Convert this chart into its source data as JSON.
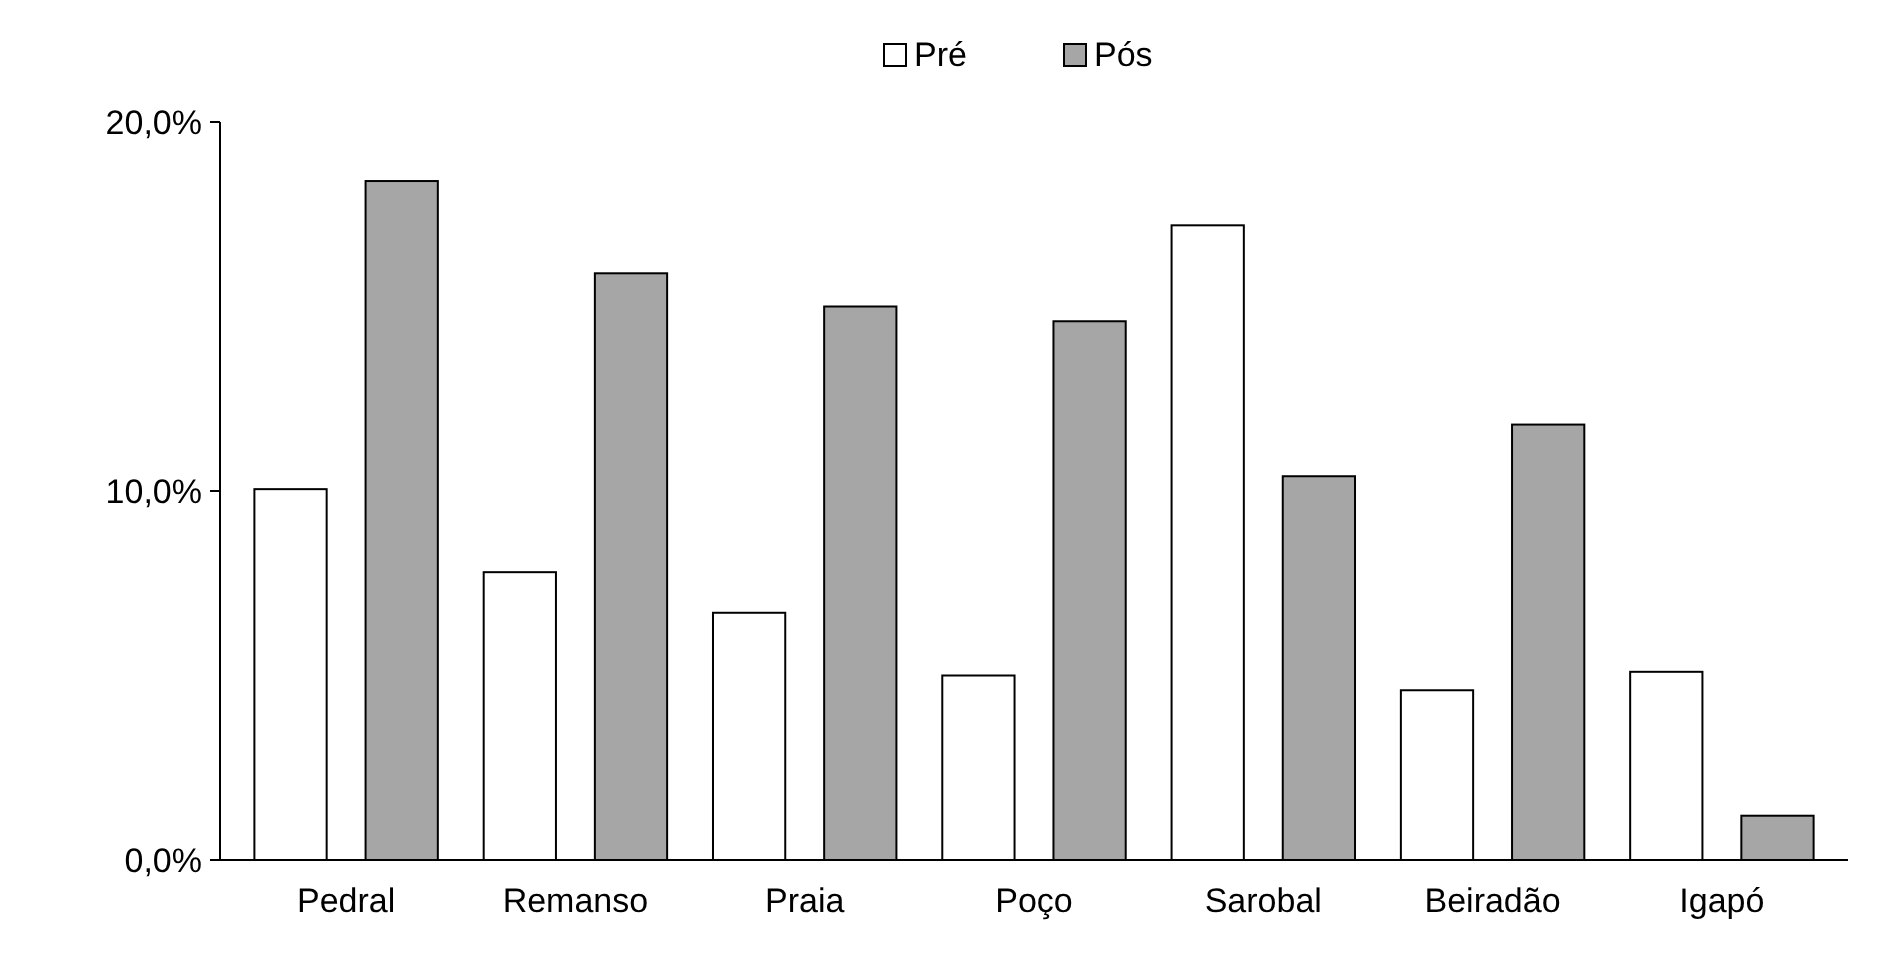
{
  "chart_data": {
    "type": "bar",
    "categories": [
      "Pedral",
      "Remanso",
      "Praia",
      "Poço",
      "Sarobal",
      "Beiradão",
      "Igapó"
    ],
    "series": [
      {
        "name": "Pré",
        "color": "#ffffff",
        "values": [
          10.05,
          7.8,
          6.7,
          5.0,
          17.2,
          4.6,
          5.1
        ]
      },
      {
        "name": "Pós",
        "color": "#a6a6a6",
        "values": [
          18.4,
          15.9,
          15.0,
          14.6,
          10.4,
          11.8,
          1.2
        ]
      }
    ],
    "ylim": [
      0,
      20
    ],
    "yticks": [
      {
        "value": 0,
        "label": "0,0%"
      },
      {
        "value": 10,
        "label": "10,0%"
      },
      {
        "value": 20,
        "label": "20,0%"
      }
    ],
    "legend": "top",
    "grid": false
  }
}
